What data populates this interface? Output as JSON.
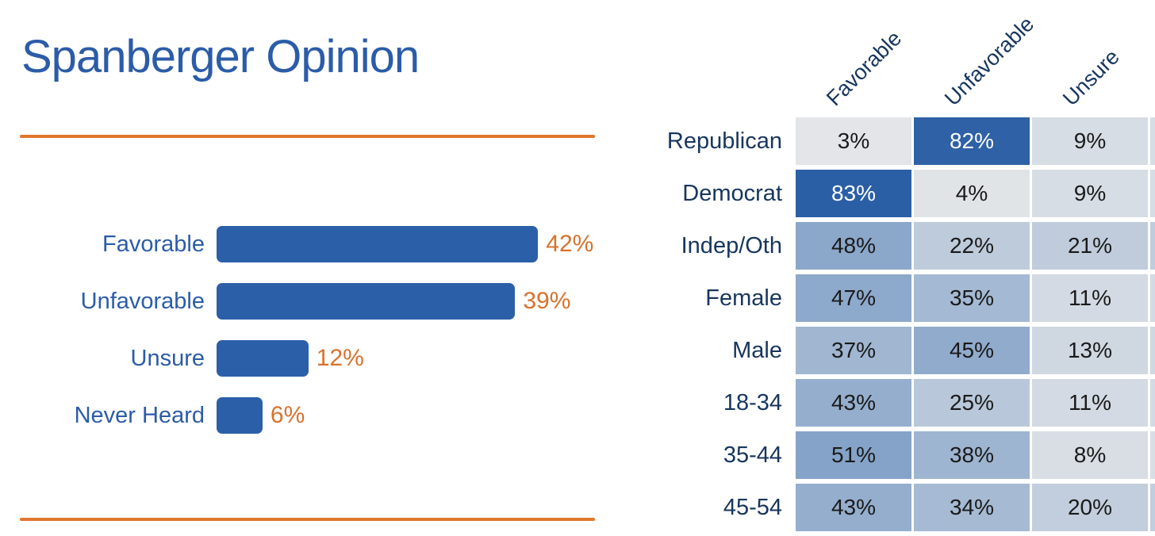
{
  "page": {
    "title": "Spanberger Opinion"
  },
  "colors": {
    "title_blue": "#2B5CA8",
    "bar_blue": "#2B5FA8",
    "bar_label_blue": "#2B5CA8",
    "accent_orange_rule": "#E0772B",
    "value_orange": "#D9712C",
    "navy_labels": "#17365D",
    "cell_text_dark": "#1A1A1A",
    "cell_text_light": "#FFFFFF",
    "background": "#FFFFFF"
  },
  "chart_data": [
    {
      "type": "bar",
      "orientation": "horizontal",
      "title": "Spanberger Opinion",
      "categories": [
        "Favorable",
        "Unfavorable",
        "Unsure",
        "Never Heard"
      ],
      "values": [
        42,
        39,
        12,
        6
      ],
      "value_suffix": "%",
      "axis": "none",
      "grid": false,
      "legend": "none",
      "bar_color": "#2B5FA8",
      "category_label_color": "#2B5CA8",
      "value_label_color": "#D9712C"
    },
    {
      "type": "heatmap",
      "columns": [
        "Favorable",
        "Unfavorable",
        "Unsure"
      ],
      "rows": [
        {
          "label": "Republican",
          "values": [
            3,
            82,
            9
          ]
        },
        {
          "label": "Democrat",
          "values": [
            83,
            4,
            9
          ]
        },
        {
          "label": "Indep/Oth",
          "values": [
            48,
            22,
            21
          ]
        },
        {
          "label": "Female",
          "values": [
            47,
            35,
            11
          ]
        },
        {
          "label": "Male",
          "values": [
            37,
            45,
            13
          ]
        },
        {
          "label": "18-34",
          "values": [
            43,
            25,
            11
          ]
        },
        {
          "label": "35-44",
          "values": [
            51,
            38,
            8
          ]
        },
        {
          "label": "45-54",
          "values": [
            43,
            34,
            20
          ]
        }
      ],
      "value_suffix": "%",
      "overflow_column_visible": true,
      "color_scale": {
        "anchors": [
          [
            3,
            "#E3E5E8"
          ],
          [
            51,
            "#85A3C8"
          ],
          [
            83,
            "#2B5FA5"
          ]
        ],
        "light_text_threshold": 80
      }
    }
  ]
}
